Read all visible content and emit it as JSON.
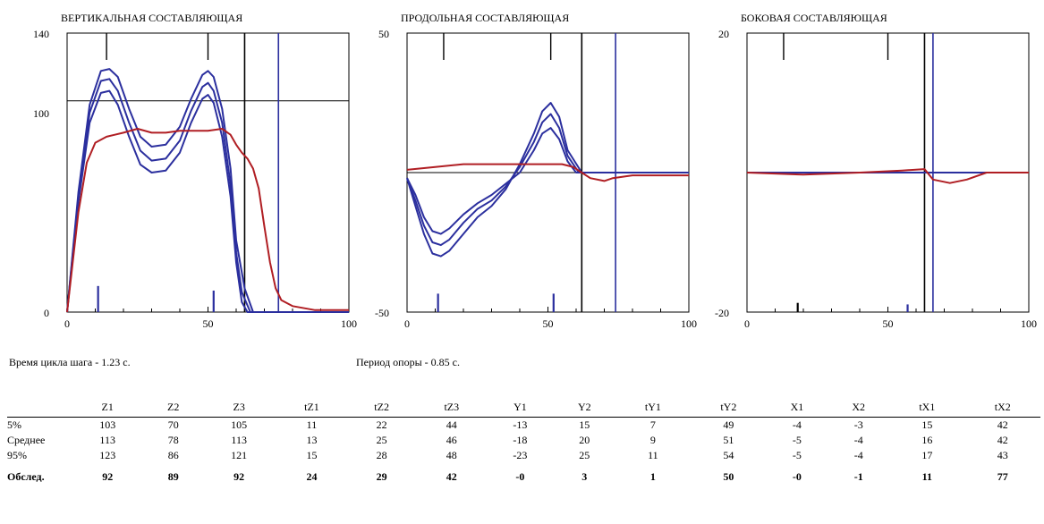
{
  "chart_data": [
    {
      "type": "line",
      "title": "ВЕРТИКАЛЬНАЯ СОСТАВЛЯЮЩАЯ",
      "xlim": [
        0,
        100
      ],
      "ylim": [
        0,
        140
      ],
      "x_ticks": [
        "0",
        "50",
        "100"
      ],
      "y_ticks": [
        "0",
        "100",
        "140"
      ],
      "hline": 106,
      "vlines": [
        {
          "x": 63,
          "color": "#000000"
        },
        {
          "x": 75,
          "color": "#2b2f9e"
        }
      ],
      "top_marks": [
        14,
        50
      ],
      "bottom_marks": [
        {
          "x": 11,
          "h": 17,
          "color": "#2b2f9e"
        },
        {
          "x": 52,
          "h": 14,
          "color": "#2b2f9e"
        }
      ],
      "series": [
        {
          "color": "#2b2f9e",
          "points": [
            [
              0,
              0
            ],
            [
              4,
              55
            ],
            [
              8,
              95
            ],
            [
              12,
              110
            ],
            [
              15,
              111
            ],
            [
              18,
              104
            ],
            [
              22,
              88
            ],
            [
              26,
              74
            ],
            [
              30,
              70
            ],
            [
              35,
              71
            ],
            [
              40,
              80
            ],
            [
              44,
              95
            ],
            [
              48,
              107
            ],
            [
              50,
              109
            ],
            [
              52,
              105
            ],
            [
              55,
              88
            ],
            [
              58,
              58
            ],
            [
              60,
              25
            ],
            [
              62,
              5
            ],
            [
              64,
              0
            ],
            [
              100,
              0
            ]
          ]
        },
        {
          "color": "#2b2f9e",
          "points": [
            [
              0,
              0
            ],
            [
              4,
              58
            ],
            [
              8,
              100
            ],
            [
              12,
              116
            ],
            [
              15,
              117
            ],
            [
              18,
              111
            ],
            [
              22,
              95
            ],
            [
              26,
              81
            ],
            [
              30,
              76
            ],
            [
              35,
              77
            ],
            [
              40,
              86
            ],
            [
              44,
              101
            ],
            [
              48,
              113
            ],
            [
              50,
              115
            ],
            [
              52,
              111
            ],
            [
              55,
              95
            ],
            [
              58,
              64
            ],
            [
              60,
              30
            ],
            [
              62,
              10
            ],
            [
              65,
              0
            ],
            [
              100,
              0
            ]
          ]
        },
        {
          "color": "#2b2f9e",
          "points": [
            [
              0,
              0
            ],
            [
              4,
              60
            ],
            [
              8,
              104
            ],
            [
              12,
              121
            ],
            [
              15,
              122
            ],
            [
              18,
              118
            ],
            [
              22,
              102
            ],
            [
              26,
              88
            ],
            [
              30,
              83
            ],
            [
              35,
              84
            ],
            [
              40,
              93
            ],
            [
              44,
              107
            ],
            [
              48,
              119
            ],
            [
              50,
              121
            ],
            [
              52,
              118
            ],
            [
              55,
              102
            ],
            [
              58,
              72
            ],
            [
              60,
              36
            ],
            [
              63,
              12
            ],
            [
              66,
              0
            ],
            [
              100,
              0
            ]
          ]
        },
        {
          "color": "#b01e23",
          "points": [
            [
              0,
              0
            ],
            [
              2,
              25
            ],
            [
              4,
              50
            ],
            [
              7,
              75
            ],
            [
              10,
              85
            ],
            [
              14,
              88
            ],
            [
              20,
              90
            ],
            [
              25,
              92
            ],
            [
              30,
              90
            ],
            [
              35,
              90
            ],
            [
              40,
              91
            ],
            [
              45,
              91
            ],
            [
              50,
              91
            ],
            [
              55,
              92
            ],
            [
              58,
              89
            ],
            [
              60,
              84
            ],
            [
              62,
              80
            ],
            [
              64,
              77
            ],
            [
              66,
              72
            ],
            [
              68,
              62
            ],
            [
              70,
              43
            ],
            [
              72,
              25
            ],
            [
              74,
              12
            ],
            [
              76,
              6
            ],
            [
              80,
              3
            ],
            [
              88,
              1
            ],
            [
              100,
              1
            ]
          ]
        }
      ]
    },
    {
      "type": "line",
      "title": "ПРОДОЛЬНАЯ СОСТАВЛЯЮЩАЯ",
      "xlim": [
        0,
        100
      ],
      "ylim": [
        -50,
        50
      ],
      "x_ticks": [
        "0",
        "50",
        "100"
      ],
      "y_ticks": [
        "-50",
        "50"
      ],
      "hline": 0,
      "vlines": [
        {
          "x": 62,
          "color": "#000000"
        },
        {
          "x": 74,
          "color": "#2b2f9e"
        }
      ],
      "top_marks": [
        13,
        51
      ],
      "bottom_marks": [
        {
          "x": 11,
          "h": 12,
          "color": "#2b2f9e"
        },
        {
          "x": 52,
          "h": 12,
          "color": "#2b2f9e"
        }
      ],
      "series": [
        {
          "color": "#2b2f9e",
          "points": [
            [
              0,
              -2
            ],
            [
              3,
              -8
            ],
            [
              6,
              -16
            ],
            [
              9,
              -21
            ],
            [
              12,
              -22
            ],
            [
              15,
              -20
            ],
            [
              20,
              -15
            ],
            [
              25,
              -11
            ],
            [
              30,
              -8
            ],
            [
              35,
              -4
            ],
            [
              40,
              0
            ],
            [
              45,
              8
            ],
            [
              48,
              14
            ],
            [
              51,
              16
            ],
            [
              54,
              12
            ],
            [
              57,
              4
            ],
            [
              60,
              0
            ],
            [
              100,
              0
            ]
          ]
        },
        {
          "color": "#2b2f9e",
          "points": [
            [
              0,
              -2
            ],
            [
              3,
              -10
            ],
            [
              6,
              -19
            ],
            [
              9,
              -25
            ],
            [
              12,
              -26
            ],
            [
              15,
              -24
            ],
            [
              20,
              -18
            ],
            [
              25,
              -13
            ],
            [
              30,
              -10
            ],
            [
              35,
              -5
            ],
            [
              40,
              2
            ],
            [
              45,
              11
            ],
            [
              48,
              18
            ],
            [
              51,
              21
            ],
            [
              54,
              16
            ],
            [
              57,
              6
            ],
            [
              61,
              0
            ],
            [
              100,
              0
            ]
          ]
        },
        {
          "color": "#2b2f9e",
          "points": [
            [
              0,
              -2
            ],
            [
              3,
              -12
            ],
            [
              6,
              -22
            ],
            [
              9,
              -29
            ],
            [
              12,
              -30
            ],
            [
              15,
              -28
            ],
            [
              20,
              -22
            ],
            [
              25,
              -16
            ],
            [
              30,
              -12
            ],
            [
              35,
              -6
            ],
            [
              40,
              3
            ],
            [
              45,
              14
            ],
            [
              48,
              22
            ],
            [
              51,
              25
            ],
            [
              54,
              20
            ],
            [
              57,
              8
            ],
            [
              62,
              0
            ],
            [
              100,
              0
            ]
          ]
        },
        {
          "color": "#b01e23",
          "points": [
            [
              0,
              1
            ],
            [
              10,
              2
            ],
            [
              20,
              3
            ],
            [
              30,
              3
            ],
            [
              40,
              3
            ],
            [
              50,
              3
            ],
            [
              55,
              3
            ],
            [
              59,
              2
            ],
            [
              62,
              0
            ],
            [
              65,
              -2
            ],
            [
              70,
              -3
            ],
            [
              73,
              -2
            ],
            [
              80,
              -1
            ],
            [
              100,
              -1
            ]
          ]
        }
      ]
    },
    {
      "type": "line",
      "title": "БОКОВАЯ СОСТАВЛЯЮЩАЯ",
      "xlim": [
        0,
        100
      ],
      "ylim": [
        -20,
        20
      ],
      "x_ticks": [
        "0",
        "50",
        "100"
      ],
      "y_ticks": [
        "-20",
        "20"
      ],
      "hline": 0,
      "vlines": [
        {
          "x": 63,
          "color": "#000000"
        },
        {
          "x": 66,
          "color": "#2b2f9e"
        }
      ],
      "top_marks": [
        13,
        50
      ],
      "bottom_marks": [
        {
          "x": 18,
          "h": 6,
          "color": "#000000"
        },
        {
          "x": 57,
          "h": 5,
          "color": "#2b2f9e"
        }
      ],
      "series": [
        {
          "color": "#2b2f9e",
          "points": [
            [
              0,
              0
            ],
            [
              100,
              0
            ]
          ]
        },
        {
          "color": "#b01e23",
          "points": [
            [
              0,
              0
            ],
            [
              20,
              -0.3
            ],
            [
              40,
              0
            ],
            [
              55,
              0.3
            ],
            [
              63,
              0.5
            ],
            [
              66,
              -1
            ],
            [
              72,
              -1.5
            ],
            [
              78,
              -1
            ],
            [
              85,
              0
            ],
            [
              100,
              0
            ]
          ]
        }
      ]
    }
  ],
  "info": {
    "cycle": "Время цикла шага - 1.23 с.",
    "support": "Период опоры - 0.85 с."
  },
  "table": {
    "headers": [
      "",
      "Z1",
      "Z2",
      "Z3",
      "tZ1",
      "tZ2",
      "tZ3",
      "Y1",
      "Y2",
      "tY1",
      "tY2",
      "X1",
      "X2",
      "tX1",
      "tX2"
    ],
    "rows": [
      {
        "label": "5%",
        "values": [
          "103",
          "70",
          "105",
          "11",
          "22",
          "44",
          "-13",
          "15",
          "7",
          "49",
          "-4",
          "-3",
          "15",
          "42"
        ]
      },
      {
        "label": "Среднее",
        "values": [
          "113",
          "78",
          "113",
          "13",
          "25",
          "46",
          "-18",
          "20",
          "9",
          "51",
          "-5",
          "-4",
          "16",
          "42"
        ]
      },
      {
        "label": "95%",
        "values": [
          "123",
          "86",
          "121",
          "15",
          "28",
          "48",
          "-23",
          "25",
          "11",
          "54",
          "-5",
          "-4",
          "17",
          "43"
        ]
      },
      {
        "label": "Обслед.",
        "values": [
          "92",
          "89",
          "92",
          "24",
          "29",
          "42",
          "-0",
          "3",
          "1",
          "50",
          "-0",
          "-1",
          "11",
          "77"
        ]
      }
    ]
  }
}
